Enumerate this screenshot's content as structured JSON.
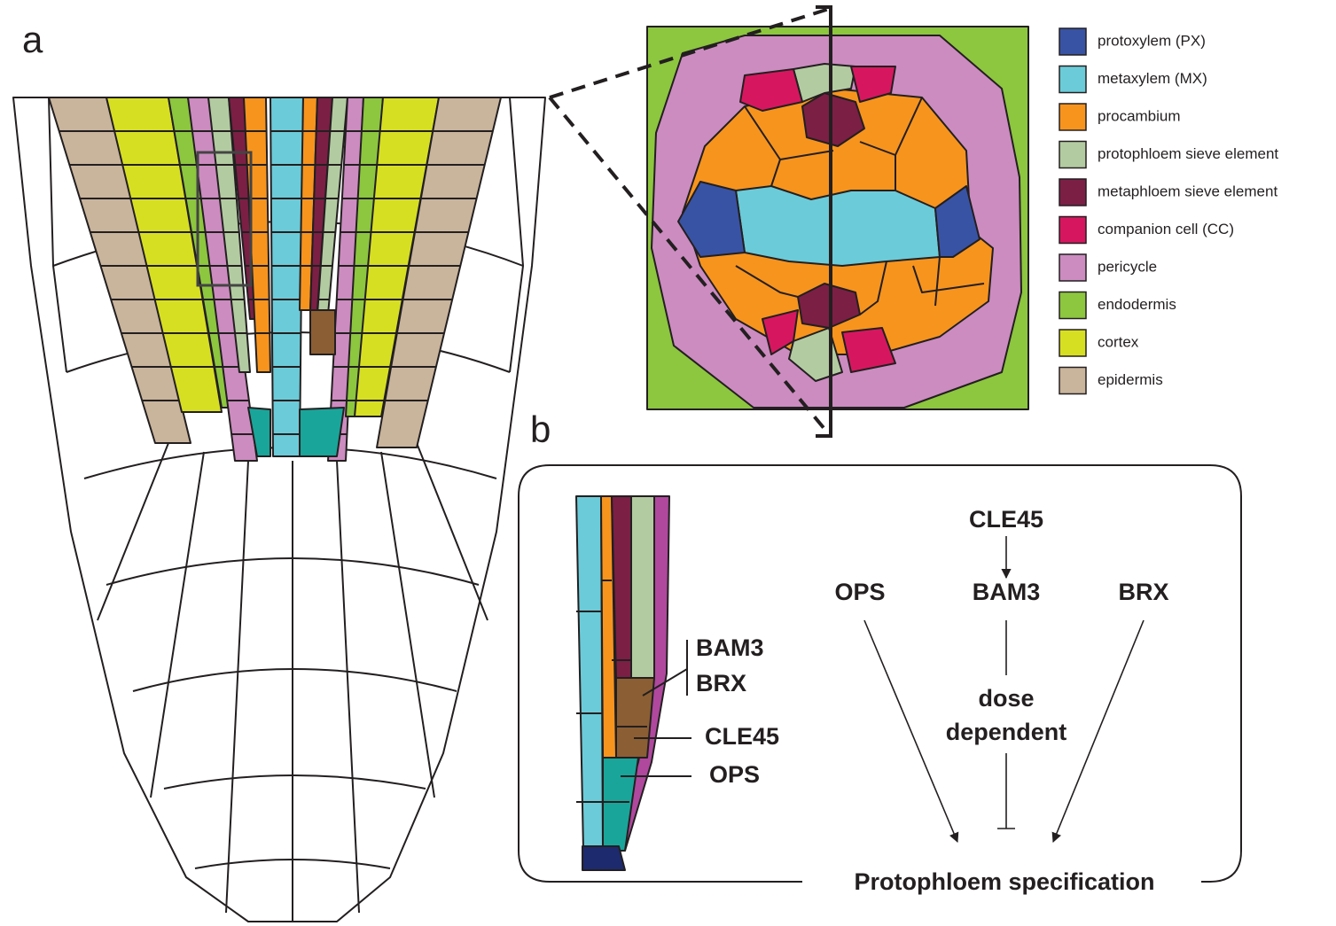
{
  "panel_a": {
    "label": "a"
  },
  "legend": [
    {
      "name": "protoxylem (PX)",
      "color": "#3953a4"
    },
    {
      "name": "metaxylem (MX)",
      "color": "#6ccbd8"
    },
    {
      "name": "procambium",
      "color": "#f7941e"
    },
    {
      "name": "protophloem sieve element",
      "color": "#b3cba1"
    },
    {
      "name": "metaphloem sieve element",
      "color": "#7b1f45"
    },
    {
      "name": "companion cell (CC)",
      "color": "#d6175f"
    },
    {
      "name": "pericycle",
      "color": "#cc8cc0"
    },
    {
      "name": "endodermis",
      "color": "#8dc63f"
    },
    {
      "name": "cortex",
      "color": "#d7df23"
    },
    {
      "name": "epidermis",
      "color": "#c9b49c"
    }
  ],
  "panel_b": {
    "label": "b",
    "inset_labels": [
      "BAM3",
      "BRX",
      "CLE45",
      "OPS"
    ],
    "network": {
      "top": "CLE45",
      "left": "OPS",
      "middle": "BAM3",
      "right": "BRX",
      "inhibition": [
        "dose",
        "dependent"
      ],
      "output": "Protophloem specification"
    }
  }
}
